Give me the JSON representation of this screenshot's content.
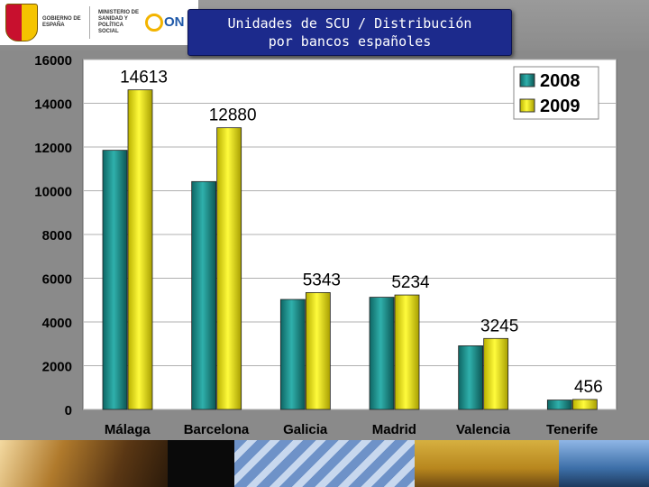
{
  "header": {
    "gov_line1": "GOBIERNO DE ESPAÑA",
    "gov_line2": "MINISTERIO DE SANIDAD Y POLÍTICA SOCIAL",
    "ont_label": "ON"
  },
  "title_line1": "Unidades de SCU / Distribución",
  "title_line2": "por bancos españoles",
  "chart_data": {
    "type": "bar",
    "categories": [
      "Málaga",
      "Barcelona",
      "Galicia",
      "Madrid",
      "Valencia",
      "Tenerife"
    ],
    "series": [
      {
        "name": "2008",
        "color": "#1f8f8c",
        "values": [
          11850,
          10420,
          5030,
          5130,
          2910,
          430
        ]
      },
      {
        "name": "2009",
        "color": "#f0ea10",
        "values": [
          14613,
          12880,
          5343,
          5234,
          3245,
          456
        ]
      }
    ],
    "data_labels": [
      "14613",
      "12880",
      "5343",
      "5234",
      "3245",
      "456"
    ],
    "ylim": [
      0,
      16000
    ],
    "yticks": [
      0,
      2000,
      4000,
      6000,
      8000,
      10000,
      12000,
      14000,
      16000
    ],
    "grid": true,
    "legend": "top-right"
  }
}
